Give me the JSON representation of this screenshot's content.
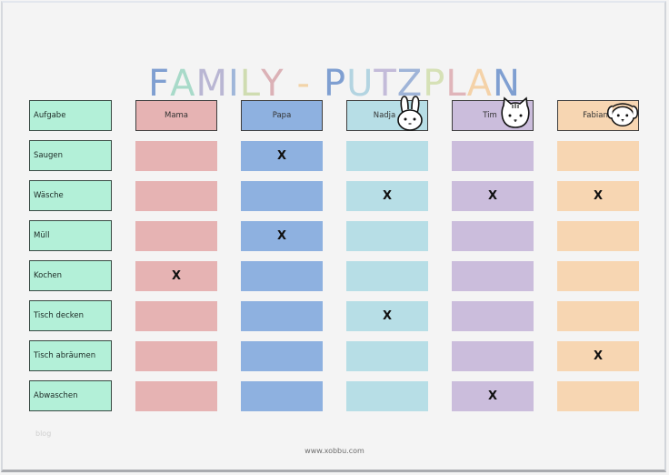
{
  "title": {
    "text": "FAMILY - PUTZPLAN",
    "letters": [
      {
        "ch": "F",
        "color": "#7f9fd1"
      },
      {
        "ch": "A",
        "color": "#a8dac9"
      },
      {
        "ch": "M",
        "color": "#b9b6d3"
      },
      {
        "ch": "I",
        "color": "#9fb6d9"
      },
      {
        "ch": "L",
        "color": "#cfdcb1"
      },
      {
        "ch": "Y",
        "color": "#dbb1b6"
      },
      {
        "ch": " ",
        "color": "#ffffff"
      },
      {
        "ch": "-",
        "color": "#f2d3a8"
      },
      {
        "ch": " ",
        "color": "#ffffff"
      },
      {
        "ch": "P",
        "color": "#7f9fd1"
      },
      {
        "ch": "U",
        "color": "#b3d4e1"
      },
      {
        "ch": "T",
        "color": "#c3bbd9"
      },
      {
        "ch": "Z",
        "color": "#9fb4d8"
      },
      {
        "ch": "P",
        "color": "#d6e1b6"
      },
      {
        "ch": "L",
        "color": "#e0b5ba"
      },
      {
        "ch": "A",
        "color": "#f4d2a8"
      },
      {
        "ch": "N",
        "color": "#7f9fd1"
      }
    ]
  },
  "table": {
    "task_header": "Aufgabe",
    "members": [
      {
        "name": "Mama",
        "color": "#e6b3b3",
        "pet": null
      },
      {
        "name": "Papa",
        "color": "#8eb1e0",
        "pet": null
      },
      {
        "name": "Nadja",
        "color": "#b7dee6",
        "pet": "rabbit"
      },
      {
        "name": "Tim",
        "color": "#cbbddc",
        "pet": "cat"
      },
      {
        "name": "Fabian",
        "color": "#f7d6b2",
        "pet": "dog"
      }
    ],
    "task_color": "#b3f0d8",
    "mark_symbol": "X",
    "rows": [
      {
        "task": "Saugen",
        "marks": [
          "",
          "X",
          "",
          "",
          ""
        ]
      },
      {
        "task": "Wäsche",
        "marks": [
          "",
          "",
          "X",
          "X",
          "X"
        ]
      },
      {
        "task": "Müll",
        "marks": [
          "",
          "X",
          "",
          "",
          ""
        ]
      },
      {
        "task": "Kochen",
        "marks": [
          "X",
          "",
          "",
          "",
          ""
        ]
      },
      {
        "task": "Tisch decken",
        "marks": [
          "",
          "",
          "X",
          "",
          ""
        ]
      },
      {
        "task": "Tisch abräumen",
        "marks": [
          "",
          "",
          "",
          "",
          "X"
        ]
      },
      {
        "task": "Abwaschen",
        "marks": [
          "",
          "",
          "",
          "X",
          ""
        ]
      }
    ]
  },
  "footer": {
    "url": "www.xobbu.com",
    "watermark": "blog"
  }
}
